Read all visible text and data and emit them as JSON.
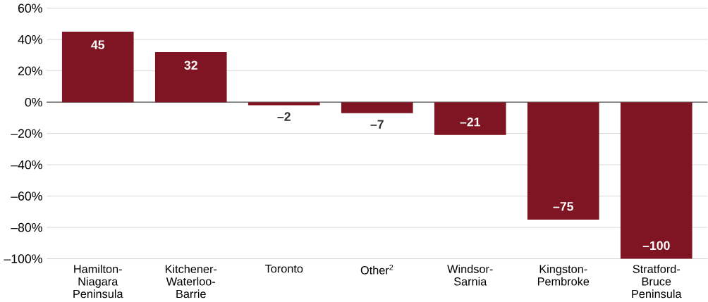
{
  "chart_data": {
    "type": "bar",
    "categories": [
      "Hamilton-Niagara Peninsula",
      "Kitchener-Waterloo-Barrie",
      "Toronto",
      "Other$^{2}$",
      "Windsor-Sarnia",
      "Kingston-Pembroke",
      "Stratford-Bruce Peninsula"
    ],
    "values": [
      45,
      32,
      -2,
      -7,
      -21,
      -75,
      -100
    ],
    "value_labels": [
      "45",
      "32",
      "–2",
      "–7",
      "–21",
      "–75",
      "–100"
    ],
    "color": "#7f1423",
    "ylim": [
      -100,
      60
    ],
    "yticks": [
      {
        "value": -100,
        "label": "–100%"
      },
      {
        "value": -80,
        "label": "–80%"
      },
      {
        "value": -60,
        "label": "–60%"
      },
      {
        "value": -40,
        "label": "–40%"
      },
      {
        "value": -20,
        "label": "–20%"
      },
      {
        "value": 0,
        "label": "0%"
      },
      {
        "value": 20,
        "label": "20%"
      },
      {
        "value": 40,
        "label": "40%"
      },
      {
        "value": 60,
        "label": "60%"
      }
    ],
    "grid": "y",
    "ref_lines": [
      {
        "axis": "y",
        "value": 0,
        "color": "#555555"
      }
    ]
  }
}
